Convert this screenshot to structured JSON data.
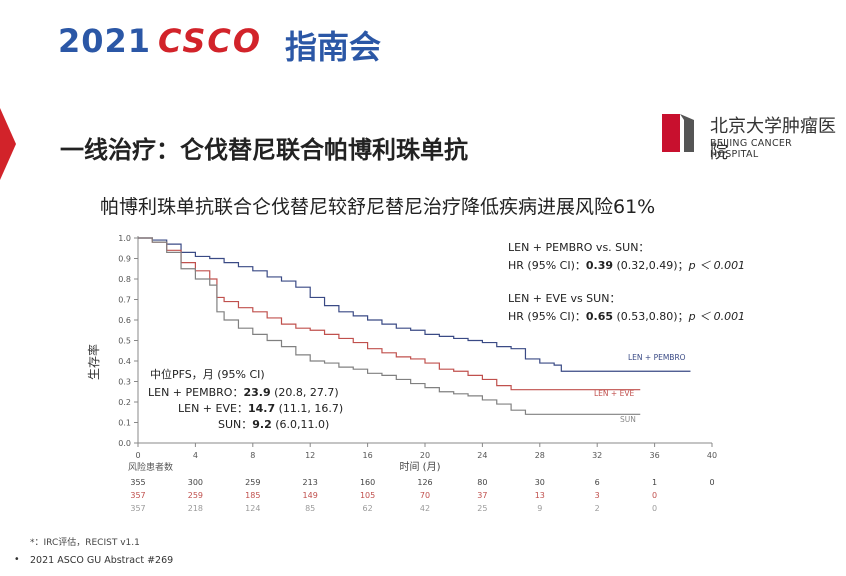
{
  "header": {
    "year": "2021",
    "brand": "CSCO",
    "guide": "指南会",
    "colors": {
      "blue": "#2b57a6",
      "red": "#d2232a"
    }
  },
  "slide_title": "一线治疗：仑伐替尼联合帕博利珠单抗",
  "logo": {
    "name_cn": "北京大学肿瘤医院",
    "name_en": "BEIJING CANCER HOSPITAL",
    "icon": "hospital-logo-icon"
  },
  "subtitle": "帕博利珠单抗联合仑伐替尼较舒尼替尼治疗降低疾病进展风险61%",
  "chart_data": {
    "type": "line",
    "step": true,
    "ylabel": "生存率",
    "xlabel": "时间 (月)",
    "xlim": [
      0,
      40
    ],
    "ylim": [
      0,
      1.0
    ],
    "xticks": [
      0,
      4,
      8,
      12,
      16,
      20,
      24,
      28,
      32,
      36,
      40
    ],
    "yticks": [
      0,
      0.1,
      0.2,
      0.3,
      0.4,
      0.5,
      0.6,
      0.7,
      0.8,
      0.9,
      1.0
    ],
    "grid": false,
    "series": [
      {
        "name": "LEN + PEMBRO",
        "color": "#3a4a85",
        "x": [
          0,
          1,
          2,
          3,
          4,
          5,
          6,
          7,
          8,
          9,
          10,
          11,
          12,
          13,
          14,
          15,
          16,
          17,
          18,
          19,
          20,
          21,
          22,
          23,
          24,
          25,
          26,
          27,
          28,
          29,
          29.5,
          35,
          38.5
        ],
        "y": [
          1.0,
          0.99,
          0.97,
          0.93,
          0.91,
          0.9,
          0.88,
          0.86,
          0.84,
          0.81,
          0.79,
          0.76,
          0.71,
          0.67,
          0.64,
          0.62,
          0.6,
          0.58,
          0.56,
          0.55,
          0.53,
          0.52,
          0.51,
          0.5,
          0.49,
          0.47,
          0.46,
          0.41,
          0.39,
          0.38,
          0.35,
          0.35,
          0.35
        ]
      },
      {
        "name": "LEN + EVE",
        "color": "#c0504d",
        "x": [
          0,
          1,
          2,
          3,
          4,
          5,
          5.5,
          6,
          7,
          8,
          9,
          10,
          11,
          12,
          13,
          14,
          15,
          16,
          17,
          18,
          19,
          20,
          21,
          22,
          23,
          24,
          25,
          26,
          30,
          35
        ],
        "y": [
          1.0,
          0.98,
          0.94,
          0.88,
          0.84,
          0.8,
          0.71,
          0.69,
          0.66,
          0.64,
          0.61,
          0.58,
          0.56,
          0.55,
          0.53,
          0.51,
          0.49,
          0.46,
          0.44,
          0.42,
          0.41,
          0.39,
          0.36,
          0.35,
          0.33,
          0.31,
          0.28,
          0.26,
          0.26,
          0.26
        ]
      },
      {
        "name": "SUN",
        "color": "#808080",
        "x": [
          0,
          1,
          2,
          3,
          4,
          5,
          5.5,
          6,
          7,
          8,
          9,
          10,
          11,
          12,
          13,
          14,
          15,
          16,
          17,
          18,
          19,
          20,
          21,
          22,
          23,
          24,
          25,
          26,
          27,
          30,
          35
        ],
        "y": [
          1.0,
          0.98,
          0.93,
          0.85,
          0.8,
          0.77,
          0.64,
          0.6,
          0.56,
          0.53,
          0.5,
          0.47,
          0.43,
          0.4,
          0.39,
          0.37,
          0.36,
          0.34,
          0.33,
          0.31,
          0.29,
          0.27,
          0.25,
          0.24,
          0.23,
          0.21,
          0.19,
          0.16,
          0.14,
          0.14,
          0.14
        ]
      }
    ],
    "annotations": {
      "hr1_title": "LEN + PEMBRO vs. SUN：",
      "hr1_prefix": "HR (95% CI)：",
      "hr1_value": "0.39",
      "hr1_ci": "(0.32,0.49)；",
      "hr1_p": "p ＜ 0.001",
      "hr2_title": "LEN + EVE vs SUN：",
      "hr2_prefix": "HR (95% CI)：",
      "hr2_value": "0.65",
      "hr2_ci": "(0.53,0.80)；",
      "hr2_p": "p ＜ 0.001",
      "median_title": "中位PFS，月 (95% CI)",
      "m1_label": "LEN + PEMBRO：",
      "m1_value": "23.9",
      "m1_ci": "(20.8, 27.7)",
      "m2_label": "LEN + EVE：",
      "m2_value": "14.7",
      "m2_ci": "(11.1, 16.7)",
      "m3_label": "SUN：",
      "m3_value": "9.2",
      "m3_ci": "(6.0,11.0)"
    },
    "risk_table": {
      "title": "风险患者数",
      "times": [
        0,
        4,
        8,
        12,
        16,
        20,
        24,
        28,
        32,
        36,
        40
      ],
      "rows": [
        {
          "color": "#444444",
          "values": [
            "355",
            "300",
            "259",
            "213",
            "160",
            "126",
            "80",
            "30",
            "6",
            "1",
            "0"
          ]
        },
        {
          "color": "#c0504d",
          "values": [
            "357",
            "259",
            "185",
            "149",
            "105",
            "70",
            "37",
            "13",
            "3",
            "0",
            ""
          ]
        },
        {
          "color": "#9a9a9a",
          "values": [
            "357",
            "218",
            "124",
            "85",
            "62",
            "42",
            "25",
            "9",
            "2",
            "0",
            ""
          ]
        }
      ]
    }
  },
  "footnotes": {
    "irc": "*：IRC评估，RECIST v1.1",
    "bullet": "•",
    "abstract": "2021 ASCO GU Abstract #269"
  }
}
